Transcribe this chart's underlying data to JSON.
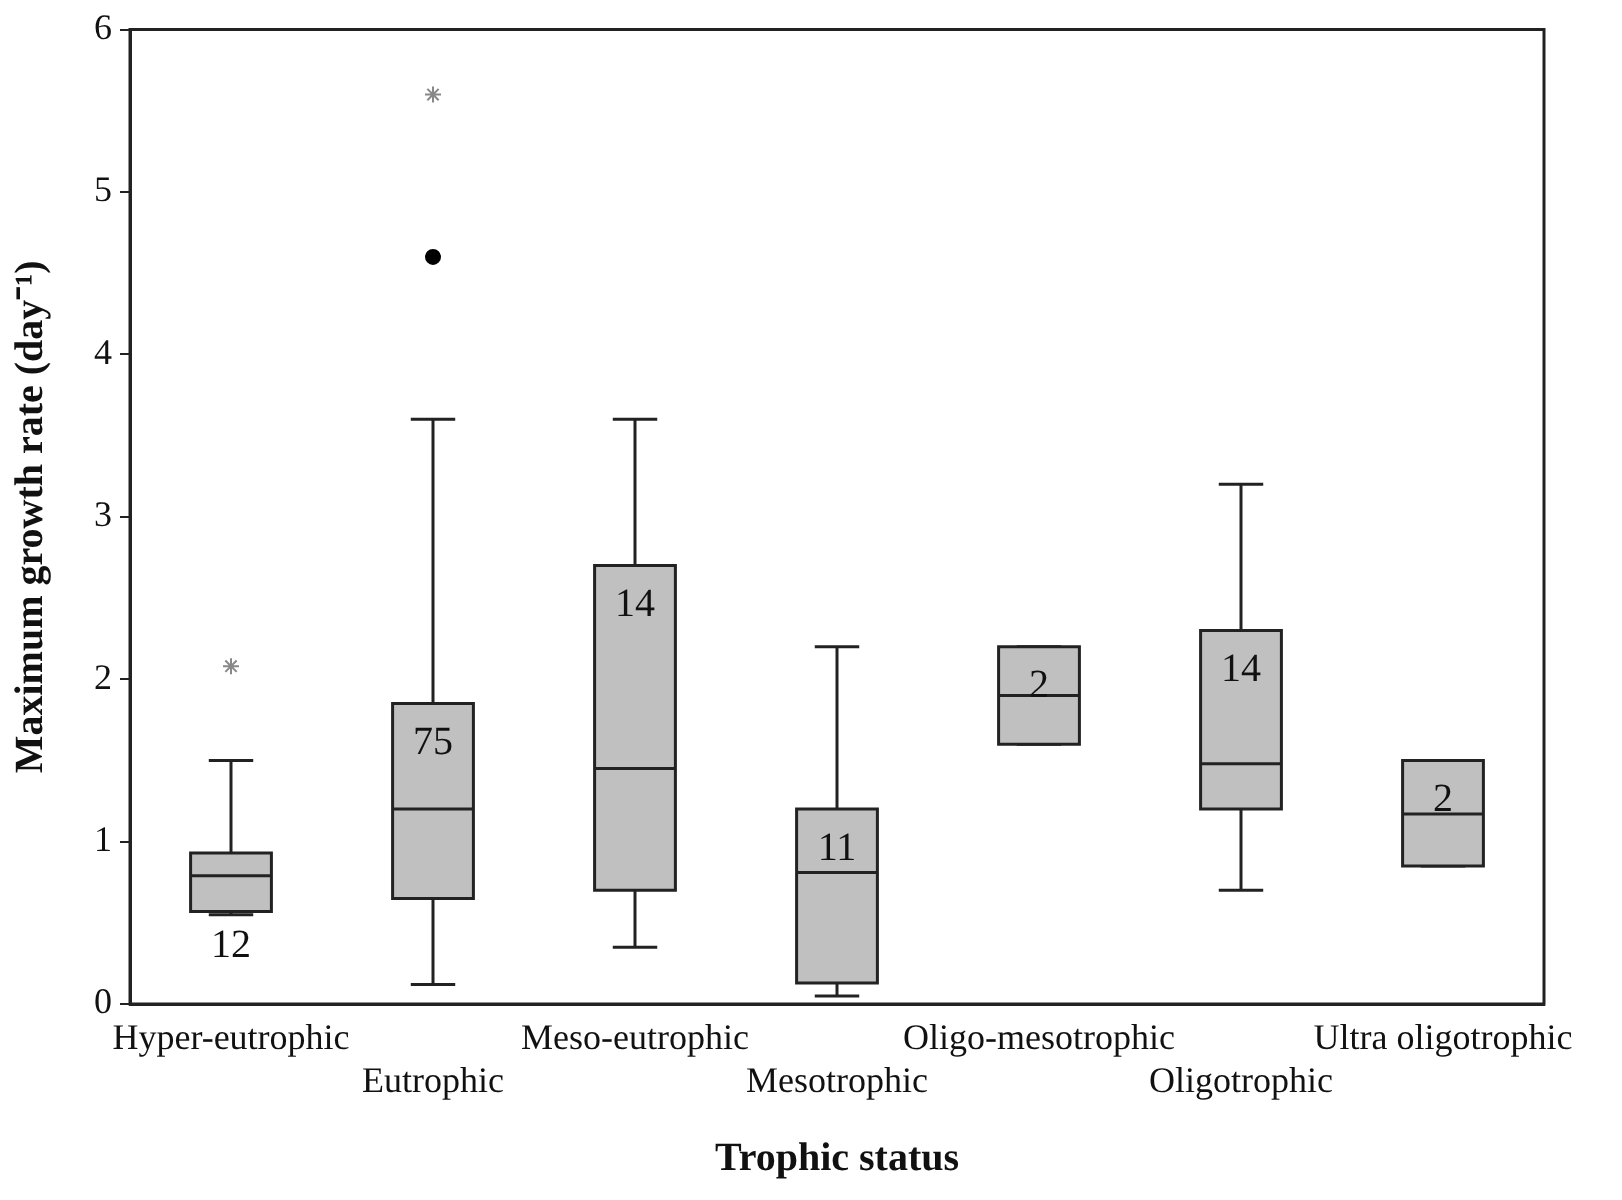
{
  "chart_data": {
    "type": "box",
    "xlabel": "Trophic status",
    "ylabel": "Maximum growth rate (day⁻¹)",
    "categories": [
      "Hyper-eutrophic",
      "Eutrophic",
      "Meso-eutrophic",
      "Mesotrophic",
      "Oligo-mesotrophic",
      "Oligotrophic",
      "Ultra oligotrophic"
    ],
    "color": "#c0c0c0",
    "boxes": [
      {
        "low": 0.55,
        "q1": 0.57,
        "median": 0.79,
        "q3": 0.93,
        "high": 1.5
      },
      {
        "low": 0.12,
        "q1": 0.65,
        "median": 1.2,
        "q3": 1.85,
        "high": 3.6
      },
      {
        "low": 0.35,
        "q1": 0.7,
        "median": 1.45,
        "q3": 2.7,
        "high": 3.6
      },
      {
        "low": 0.05,
        "q1": 0.13,
        "median": 0.81,
        "q3": 1.2,
        "high": 2.2
      },
      {
        "low": 1.6,
        "q1": 1.6,
        "median": 1.9,
        "q3": 2.2,
        "high": 2.2
      },
      {
        "low": 0.7,
        "q1": 1.2,
        "median": 1.48,
        "q3": 2.3,
        "high": 3.2
      },
      {
        "low": 0.85,
        "q1": 0.85,
        "median": 1.17,
        "q3": 1.5,
        "high": 1.5
      }
    ],
    "series": [
      {
        "type": "scatter",
        "marker": "cross",
        "color": "#888888",
        "x": [
          "Hyper-eutrophic",
          "Eutrophic"
        ],
        "values": [
          2.08,
          5.6
        ]
      },
      {
        "type": "scatter",
        "marker": "circle",
        "color": "#000000",
        "x": [
          "Eutrophic"
        ],
        "values": [
          4.6
        ]
      }
    ],
    "annotations": [
      "12",
      "75",
      "14",
      "11",
      "2",
      "14",
      "2"
    ],
    "ylim": [
      0,
      6
    ],
    "yticks": [
      0,
      1,
      2,
      3,
      4,
      5,
      6
    ],
    "grid": false,
    "legend": false
  }
}
